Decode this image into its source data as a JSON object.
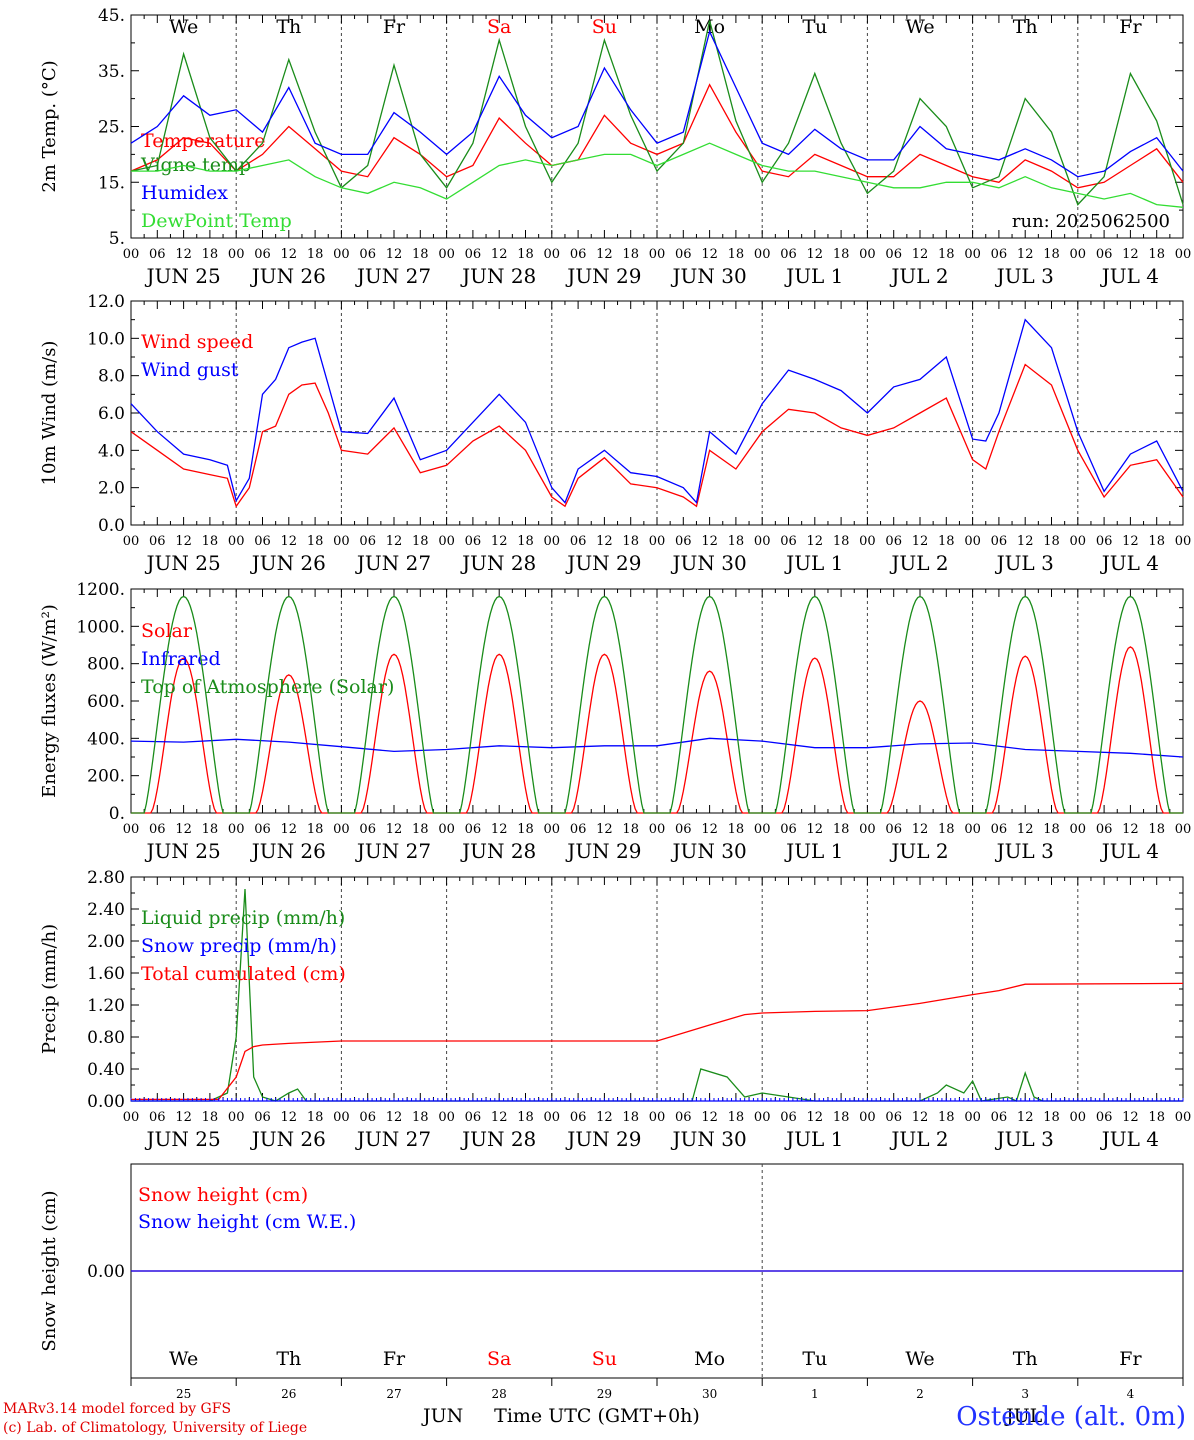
{
  "days": [
    "JUN 25",
    "JUN 26",
    "JUN 27",
    "JUN 28",
    "JUN 29",
    "JUN 30",
    "JUL  1",
    "JUL  2",
    "JUL  3",
    "JUL  4"
  ],
  "weekdays": [
    "We",
    "Th",
    "Fr",
    "Sa",
    "Su",
    "Mo",
    "Tu",
    "We",
    "Th",
    "Fr"
  ],
  "weekend_color": "#ff0000",
  "day_numbers": [
    "25",
    "26",
    "27",
    "28",
    "29",
    "30",
    "1",
    "2",
    "3",
    "4"
  ],
  "hour_ticks": [
    "00",
    "06",
    "12",
    "18"
  ],
  "run": "run: 2025062500",
  "footer": {
    "model": "MARv3.14 model forced by GFS",
    "lab": "(c) Lab. of Climatology, University of Liege",
    "xlabel": "Time UTC (GMT+0h)",
    "month_left": "JUN",
    "month_right": "JUL",
    "location": "Ostende (alt. 0m)"
  },
  "chart_data": [
    {
      "id": "temp",
      "type": "line",
      "ylabel": "2m Temp. (°C)",
      "ylim": [
        5,
        45
      ],
      "yticks": [
        "5.",
        "15.",
        "25.",
        "35.",
        "45."
      ],
      "x_unit": "hours from 2025-06-25 00 UTC",
      "series": [
        {
          "name": "Temperature",
          "color": "#ff0000",
          "x": [
            0,
            6,
            12,
            18,
            24,
            30,
            36,
            42,
            48,
            54,
            60,
            66,
            72,
            78,
            84,
            90,
            96,
            102,
            108,
            114,
            120,
            126,
            132,
            138,
            144,
            150,
            156,
            162,
            168,
            174,
            180,
            186,
            192,
            198,
            204,
            210,
            216,
            222,
            228,
            234,
            240
          ],
          "values": [
            17,
            19,
            23,
            22,
            17,
            20,
            25,
            21,
            17,
            16,
            23,
            20,
            16,
            18,
            26.5,
            22,
            18,
            19,
            27,
            22,
            20,
            22,
            32.5,
            24,
            17,
            16,
            20,
            18,
            16,
            16,
            20,
            18,
            16,
            15,
            19,
            17,
            14,
            15,
            18,
            21,
            15
          ]
        },
        {
          "name": "Vigne temp",
          "color": "#1a8c1a",
          "x": [
            0,
            6,
            12,
            18,
            24,
            30,
            36,
            42,
            48,
            54,
            60,
            66,
            72,
            78,
            84,
            90,
            96,
            102,
            108,
            114,
            120,
            126,
            132,
            138,
            144,
            150,
            156,
            162,
            168,
            174,
            180,
            186,
            192,
            198,
            204,
            210,
            216,
            222,
            228,
            234,
            240
          ],
          "values": [
            17,
            18,
            38,
            23,
            17,
            22,
            37,
            24,
            14,
            18,
            36,
            20,
            14,
            22,
            40.5,
            25,
            15,
            22,
            40.5,
            27,
            17,
            22,
            44,
            26,
            15,
            22,
            34.5,
            22,
            13,
            17,
            30,
            25,
            14,
            16,
            30,
            24,
            11,
            16,
            34.5,
            26,
            11
          ]
        },
        {
          "name": "Humidex",
          "color": "#0000ff",
          "x": [
            0,
            6,
            12,
            18,
            24,
            30,
            36,
            42,
            48,
            54,
            60,
            66,
            72,
            78,
            84,
            90,
            96,
            102,
            108,
            114,
            120,
            126,
            132,
            138,
            144,
            150,
            156,
            162,
            168,
            174,
            180,
            186,
            192,
            198,
            204,
            210,
            216,
            222,
            228,
            234,
            240
          ],
          "values": [
            22,
            25,
            30.5,
            27,
            28,
            24,
            32,
            22,
            20,
            20,
            27.5,
            24,
            20,
            24,
            34,
            27,
            23,
            25,
            35.5,
            28,
            22,
            24,
            42,
            32,
            22,
            20,
            24.5,
            21,
            19,
            19,
            25,
            21,
            20,
            19,
            21,
            19,
            16,
            17,
            20.5,
            23,
            17
          ]
        },
        {
          "name": "DewPoint Temp",
          "color": "#33dd33",
          "x": [
            0,
            6,
            12,
            18,
            24,
            30,
            36,
            42,
            48,
            54,
            60,
            66,
            72,
            78,
            84,
            90,
            96,
            102,
            108,
            114,
            120,
            126,
            132,
            138,
            144,
            150,
            156,
            162,
            168,
            174,
            180,
            186,
            192,
            198,
            204,
            210,
            216,
            222,
            228,
            234,
            240
          ],
          "values": [
            17,
            17,
            18,
            17,
            17,
            18,
            19,
            16,
            14,
            13,
            15,
            14,
            12,
            15,
            18,
            19,
            18,
            19,
            20,
            20,
            18,
            20,
            22,
            20,
            18,
            17,
            17,
            16,
            15,
            14,
            14,
            15,
            15,
            14,
            16,
            14,
            13,
            12,
            13,
            11,
            10.5
          ]
        }
      ]
    },
    {
      "id": "wind",
      "type": "line",
      "ylabel": "10m Wind (m/s)",
      "ylim": [
        0,
        12
      ],
      "yticks": [
        "0.0",
        "2.0",
        "4.0",
        "6.0",
        "8.0",
        "10.0",
        "12.0"
      ],
      "threshold": 5.0,
      "series": [
        {
          "name": "Wind speed",
          "color": "#ff0000",
          "x": [
            0,
            6,
            12,
            18,
            22,
            24,
            27,
            30,
            33,
            36,
            39,
            42,
            45,
            48,
            54,
            60,
            66,
            72,
            78,
            84,
            90,
            96,
            99,
            102,
            108,
            114,
            120,
            126,
            129,
            132,
            138,
            144,
            150,
            156,
            162,
            168,
            174,
            180,
            186,
            192,
            195,
            198,
            204,
            210,
            216,
            222,
            228,
            234,
            240
          ],
          "values": [
            5,
            4,
            3,
            2.7,
            2.5,
            1,
            2,
            5,
            5.3,
            7,
            7.5,
            7.6,
            6,
            4,
            3.8,
            5.2,
            2.8,
            3.2,
            4.5,
            5.3,
            4,
            1.5,
            1,
            2.5,
            3.6,
            2.2,
            2,
            1.5,
            1,
            4,
            3,
            5,
            6.2,
            6,
            5.2,
            4.8,
            5.2,
            6,
            6.8,
            3.5,
            3,
            5,
            8.6,
            7.5,
            4,
            1.5,
            3.2,
            3.5,
            1.5
          ]
        },
        {
          "name": "Wind gust",
          "color": "#0000ff",
          "x": [
            0,
            6,
            12,
            18,
            22,
            24,
            27,
            30,
            33,
            36,
            39,
            42,
            45,
            48,
            54,
            60,
            66,
            72,
            78,
            84,
            90,
            96,
            99,
            102,
            108,
            114,
            120,
            126,
            129,
            132,
            138,
            144,
            150,
            156,
            162,
            168,
            174,
            180,
            186,
            192,
            195,
            198,
            204,
            210,
            216,
            222,
            228,
            234,
            240
          ],
          "values": [
            6.5,
            5,
            3.8,
            3.5,
            3.2,
            1.3,
            2.5,
            7,
            7.8,
            9.5,
            9.8,
            10,
            7.5,
            5,
            4.9,
            6.8,
            3.5,
            4,
            5.5,
            7,
            5.5,
            2,
            1.2,
            3,
            4,
            2.8,
            2.6,
            2,
            1.2,
            5,
            3.8,
            6.5,
            8.3,
            7.8,
            7.2,
            6,
            7.4,
            7.8,
            9,
            4.6,
            4.5,
            6,
            11,
            9.5,
            5,
            1.8,
            3.8,
            4.5,
            1.8
          ]
        }
      ]
    },
    {
      "id": "energy",
      "type": "line",
      "ylabel": "Energy fluxes (W/m²)",
      "ylim": [
        0,
        1200
      ],
      "yticks": [
        "0.",
        "200.",
        "400.",
        "600.",
        "800.",
        "1000.",
        "1200."
      ],
      "series": [
        {
          "name": "Solar",
          "color": "#ff0000",
          "peaks": [
            830,
            740,
            850,
            850,
            850,
            760,
            830,
            600,
            840,
            890
          ]
        },
        {
          "name": "Infrared",
          "color": "#0000ff",
          "x": [
            0,
            12,
            24,
            36,
            48,
            60,
            72,
            84,
            96,
            108,
            120,
            132,
            144,
            156,
            168,
            180,
            192,
            204,
            216,
            228,
            240
          ],
          "values": [
            385,
            380,
            395,
            380,
            355,
            330,
            340,
            360,
            350,
            360,
            360,
            400,
            385,
            350,
            350,
            370,
            375,
            340,
            330,
            320,
            300
          ]
        },
        {
          "name": "Top of Atmosphere (Solar)",
          "color": "#1a8c1a",
          "peak": 1160
        }
      ]
    },
    {
      "id": "precip",
      "type": "line",
      "ylabel": "Precip (mm/h)",
      "ylim": [
        0,
        2.8
      ],
      "yticks": [
        "0.00",
        "0.40",
        "0.80",
        "1.20",
        "1.60",
        "2.00",
        "2.40",
        "2.80"
      ],
      "series": [
        {
          "name": "Liquid precip (mm/h)",
          "color": "#1a8c1a",
          "x": [
            0,
            18,
            22,
            24,
            26,
            28,
            30,
            33,
            36,
            38,
            40,
            42,
            120,
            128,
            130,
            136,
            140,
            144,
            150,
            156,
            180,
            184,
            186,
            190,
            192,
            194,
            200,
            202,
            204,
            206,
            208,
            240
          ],
          "values": [
            0,
            0,
            0.1,
            0.8,
            2.65,
            0.3,
            0.05,
            0,
            0.1,
            0.15,
            0,
            0,
            0,
            0,
            0.4,
            0.3,
            0.05,
            0.1,
            0.05,
            0,
            0,
            0.1,
            0.2,
            0.1,
            0.25,
            0,
            0.05,
            0,
            0.35,
            0.05,
            0,
            0
          ]
        },
        {
          "name": "Snow precip (mm/h)",
          "color": "#0000ff",
          "x": [
            0,
            240
          ],
          "values": [
            0,
            0
          ]
        },
        {
          "name": "Total cumulated (cm)",
          "color": "#ff0000",
          "x": [
            0,
            20,
            24,
            26,
            28,
            30,
            36,
            48,
            120,
            132,
            140,
            144,
            156,
            168,
            180,
            192,
            198,
            204,
            240
          ],
          "values": [
            0.02,
            0.02,
            0.3,
            0.62,
            0.68,
            0.7,
            0.72,
            0.75,
            0.75,
            0.95,
            1.08,
            1.1,
            1.12,
            1.13,
            1.22,
            1.33,
            1.38,
            1.46,
            1.47
          ]
        }
      ]
    },
    {
      "id": "snow",
      "type": "line",
      "ylabel": "Snow height (cm)",
      "ylim": [
        -1,
        1
      ],
      "yticks": [
        "0.00"
      ],
      "series": [
        {
          "name": "Snow height (cm)",
          "color": "#ff0000",
          "x": [
            0,
            240
          ],
          "values": [
            0,
            0
          ]
        },
        {
          "name": "Snow height (cm W.E.)",
          "color": "#0000ff",
          "x": [
            0,
            240
          ],
          "values": [
            0,
            0
          ]
        }
      ]
    }
  ]
}
